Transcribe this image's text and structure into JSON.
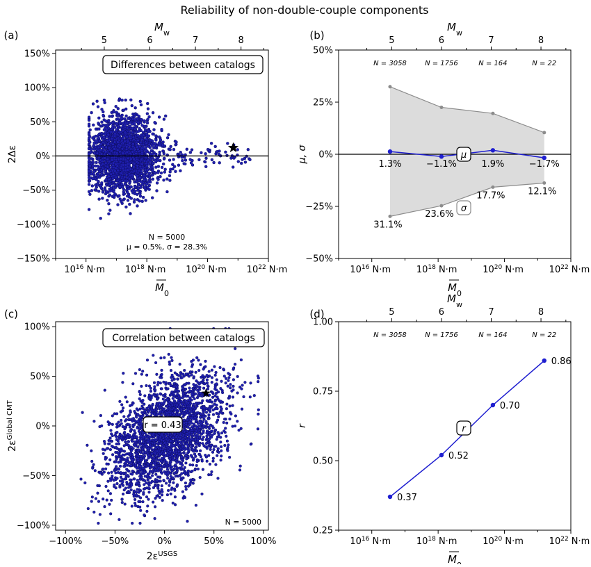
{
  "title": "Reliability of non-double-couple components",
  "colors": {
    "points": "#1f1fb0",
    "point_edge": "#0a0a55",
    "line": "#1f1fd0",
    "sigma": "#8c8c8c",
    "band": "#dcdcdc"
  },
  "chart_data": [
    {
      "panel": "(a)",
      "type": "scatter",
      "title": "Differences between catalogs",
      "xlabel": "M̅0",
      "ylabel": "2Δε",
      "top_axis_label": "Mw",
      "x_scale": "log (N·m)",
      "xlim": [
        1000000000000000.0,
        1e+22
      ],
      "ylim": [
        -150,
        155
      ],
      "x_tick_labels": [
        "10¹⁶ N·m",
        "10¹⁸ N·m",
        "10²⁰ N·m",
        "10²² N·m"
      ],
      "y_tick_labels": [
        "150%",
        "100%",
        "50%",
        "0%",
        "−50%",
        "−100%",
        "−150%"
      ],
      "top_tick_labels": [
        "5",
        "6",
        "7",
        "8"
      ],
      "annotations": [
        "N = 5000",
        "μ = 0.5%,  σ = 28.3%"
      ],
      "n": 5000,
      "mu": 0.5,
      "sigma": 28.3,
      "point_cloud": {
        "count": 2200,
        "x_center_log10": 17.2,
        "spread_pct": 28.3
      },
      "highlight_point": {
        "marker": "star",
        "x": 7e+20,
        "y": 12
      }
    },
    {
      "panel": "(b)",
      "type": "line",
      "xlabel": "M̅0",
      "ylabel": "μ, σ",
      "top_axis_label": "Mw",
      "x_scale": "log (N·m)",
      "xlim": [
        1000000000000000.0,
        1e+22
      ],
      "ylim": [
        -50,
        50
      ],
      "x_tick_labels": [
        "10¹⁶ N·m",
        "10¹⁸ N·m",
        "10²⁰ N·m",
        "10²² N·m"
      ],
      "y_tick_labels": [
        "50%",
        "25%",
        "0%",
        "−25%",
        "−50%"
      ],
      "top_tick_labels": [
        "5",
        "6",
        "7",
        "8"
      ],
      "x": [
        3.55e+16,
        1.26e+18,
        4.47e+19,
        1.58e+21
      ],
      "n_labels": [
        "N = 3058",
        "N = 1756",
        "N = 164",
        "N = 22"
      ],
      "series": [
        {
          "name": "μ",
          "values": [
            1.3,
            -1.1,
            1.9,
            -1.7
          ],
          "labels": [
            "1.3%",
            "−1.1%",
            "1.9%",
            "−1.7%"
          ]
        },
        {
          "name": "σ",
          "values": [
            31.1,
            23.6,
            17.7,
            12.1
          ],
          "labels": [
            "31.1%",
            "23.6%",
            "17.7%",
            "12.1%"
          ]
        }
      ]
    },
    {
      "panel": "(c)",
      "type": "scatter",
      "title": "Correlation between catalogs",
      "xlabel": "2εUSGS",
      "ylabel": "2εGlobal CMT",
      "xlim": [
        -110,
        105
      ],
      "ylim": [
        -105,
        105
      ],
      "x_tick_labels": [
        "−100%",
        "−50%",
        "0%",
        "50%",
        "100%"
      ],
      "y_tick_labels": [
        "100%",
        "50%",
        "0%",
        "−50%",
        "−100%"
      ],
      "annotations": [
        "r = 0.43",
        "N = 5000"
      ],
      "r": 0.43,
      "n": 5000,
      "point_cloud": {
        "count": 2600,
        "spread_pct": 30
      },
      "highlight_point": {
        "marker": "star",
        "x": 42,
        "y": 33
      }
    },
    {
      "panel": "(d)",
      "type": "line",
      "xlabel": "M̅0",
      "ylabel": "r",
      "top_axis_label": "Mw",
      "x_scale": "log (N·m)",
      "xlim": [
        1000000000000000.0,
        1e+22
      ],
      "ylim": [
        0.25,
        1.0
      ],
      "x_tick_labels": [
        "10¹⁶ N·m",
        "10¹⁸ N·m",
        "10²⁰ N·m",
        "10²² N·m"
      ],
      "y_tick_labels": [
        "1.00",
        "0.75",
        "0.50",
        "0.25"
      ],
      "top_tick_labels": [
        "5",
        "6",
        "7",
        "8"
      ],
      "x": [
        3.55e+16,
        1.26e+18,
        4.47e+19,
        1.58e+21
      ],
      "n_labels": [
        "N = 3058",
        "N = 1756",
        "N = 164",
        "N = 22"
      ],
      "series": [
        {
          "name": "r",
          "values": [
            0.37,
            0.52,
            0.7,
            0.86
          ],
          "labels": [
            "0.37",
            "0.52",
            "0.70",
            "0.86"
          ]
        }
      ]
    }
  ]
}
